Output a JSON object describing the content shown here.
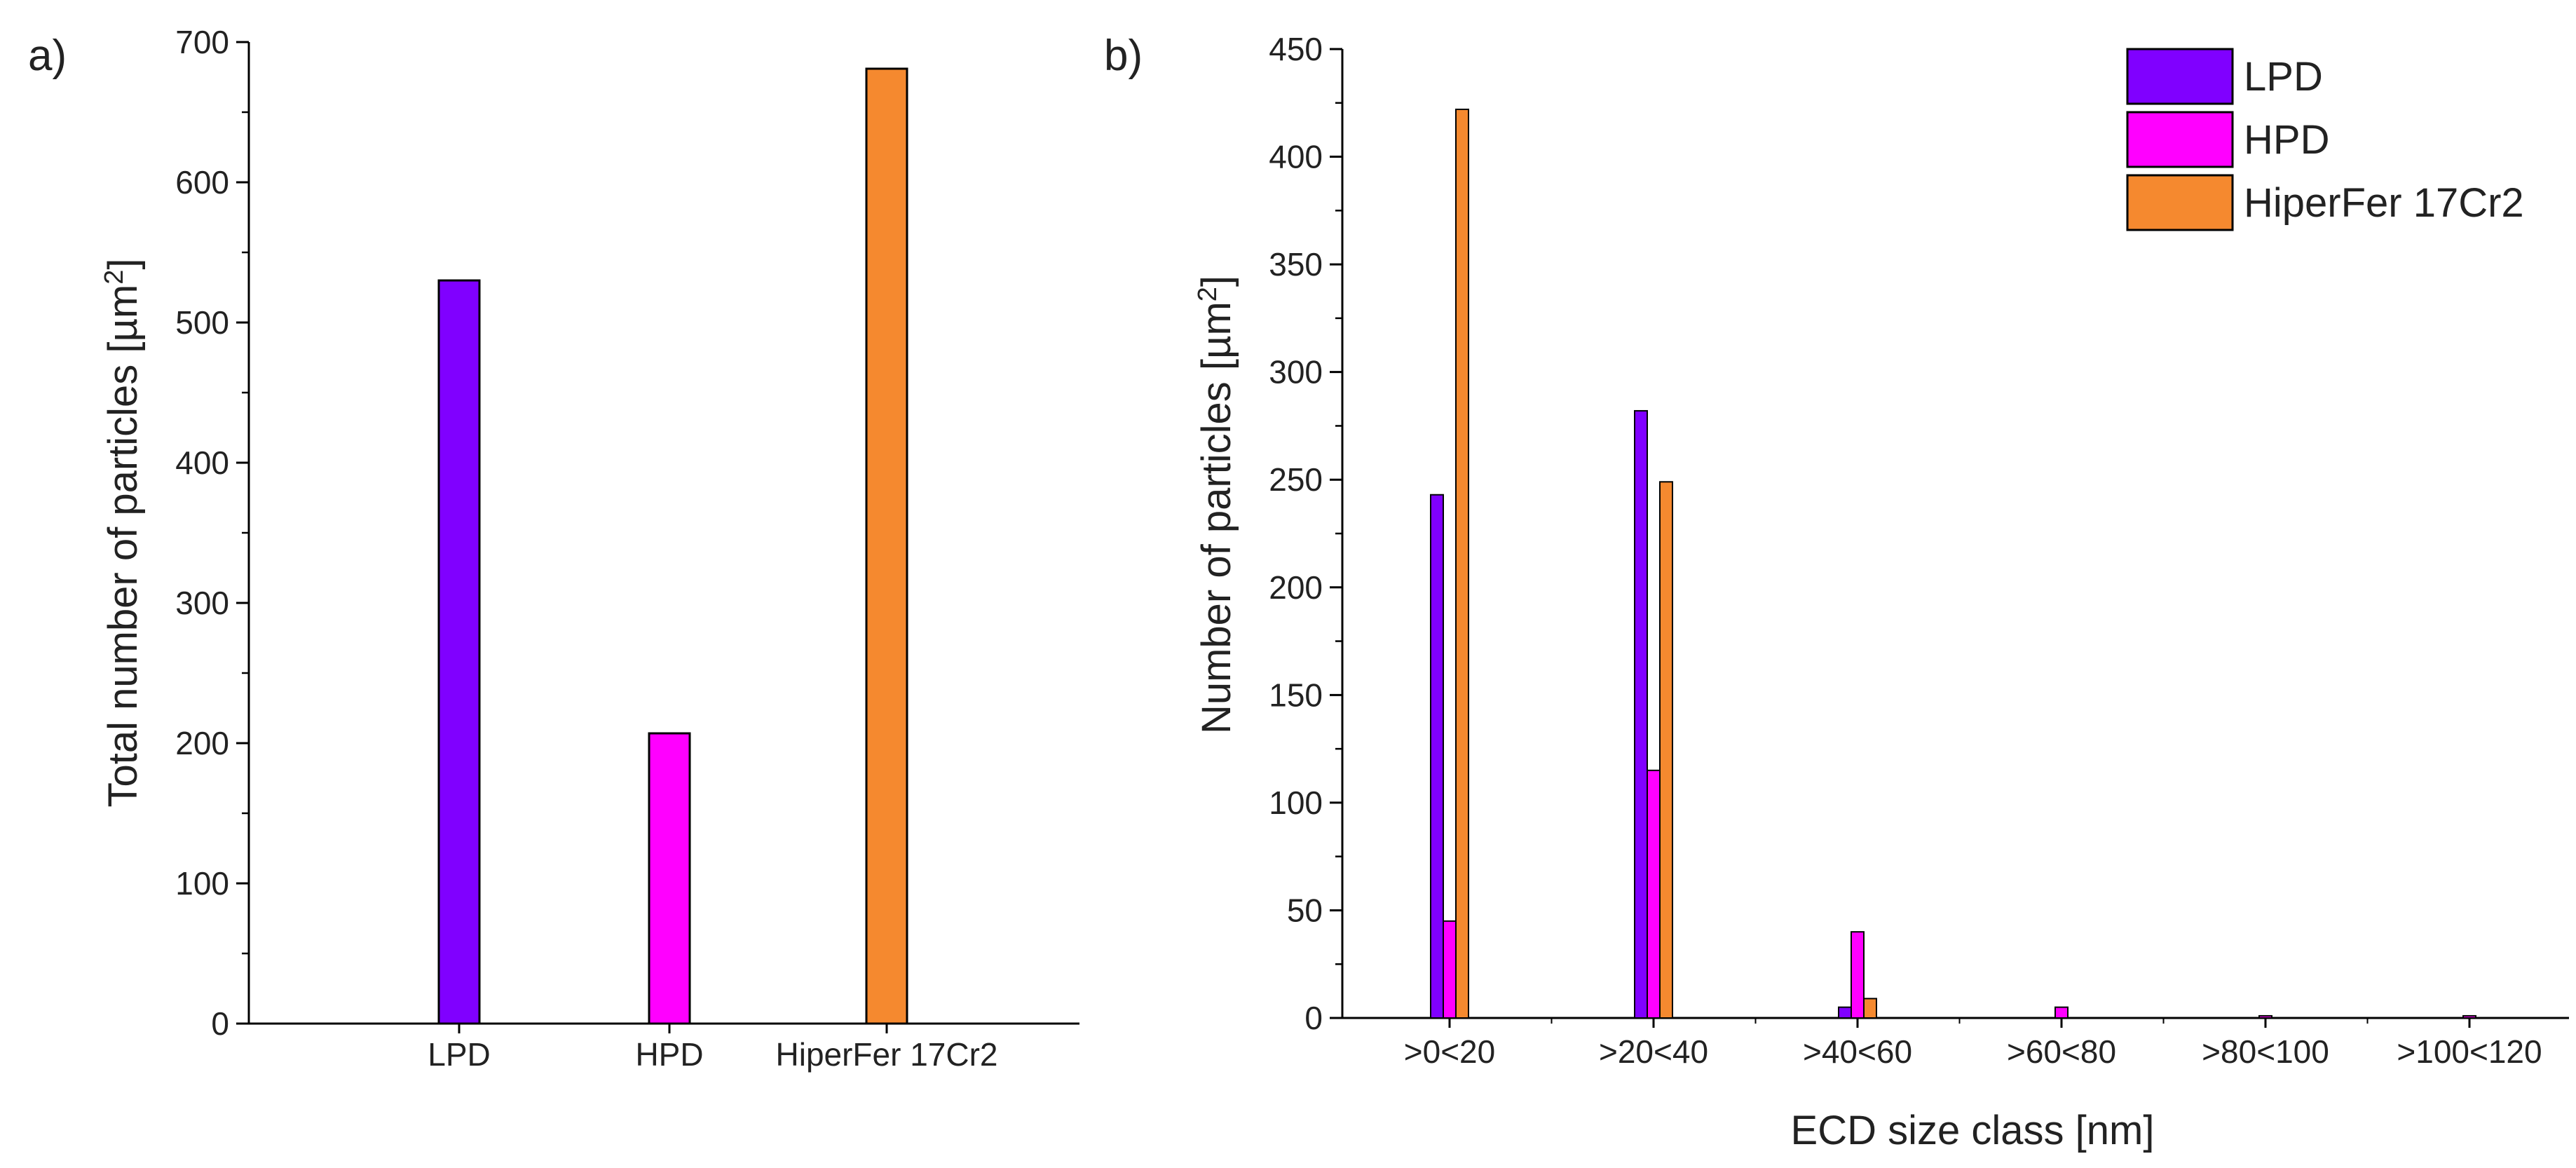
{
  "colors": {
    "LPD": "#8000ff",
    "HPD": "#ff00ff",
    "HiperFer 17Cr2": "#f5892f"
  },
  "chart_data": [
    {
      "panel": "a)",
      "type": "bar",
      "categories": [
        "LPD",
        "HPD",
        "HiperFer 17Cr2"
      ],
      "values": [
        530,
        207,
        681
      ],
      "xlabel": "",
      "ylabel": "Total number of particles [µm²]",
      "ylabel_main": "Total number of particles [µm",
      "ylabel_sup": "2",
      "ylabel_end": "]",
      "ylim": [
        0,
        700
      ],
      "yticks": [
        0,
        100,
        200,
        300,
        400,
        500,
        600,
        700
      ]
    },
    {
      "panel": "b)",
      "type": "bar",
      "categories": [
        ">0<20",
        ">20<40",
        ">40<60",
        ">60<80",
        ">80<100",
        ">100<120"
      ],
      "series": [
        {
          "name": "LPD",
          "values": [
            243,
            282,
            5,
            0,
            0,
            0
          ]
        },
        {
          "name": "HPD",
          "values": [
            45,
            115,
            40,
            5,
            1,
            1
          ]
        },
        {
          "name": "HiperFer 17Cr2",
          "values": [
            422,
            249,
            9,
            0,
            0,
            0
          ]
        }
      ],
      "xlabel": "ECD size class [nm]",
      "ylabel": "Number of particles [µm²]",
      "ylabel_main": "Number of particles [µm",
      "ylabel_sup": "2",
      "ylabel_end": "]",
      "ylim": [
        0,
        450
      ],
      "yticks": [
        0,
        50,
        100,
        150,
        200,
        250,
        300,
        350,
        400,
        450
      ],
      "legend": [
        "LPD",
        "HPD",
        "HiperFer 17Cr2"
      ],
      "legend_position": "top-right"
    }
  ]
}
